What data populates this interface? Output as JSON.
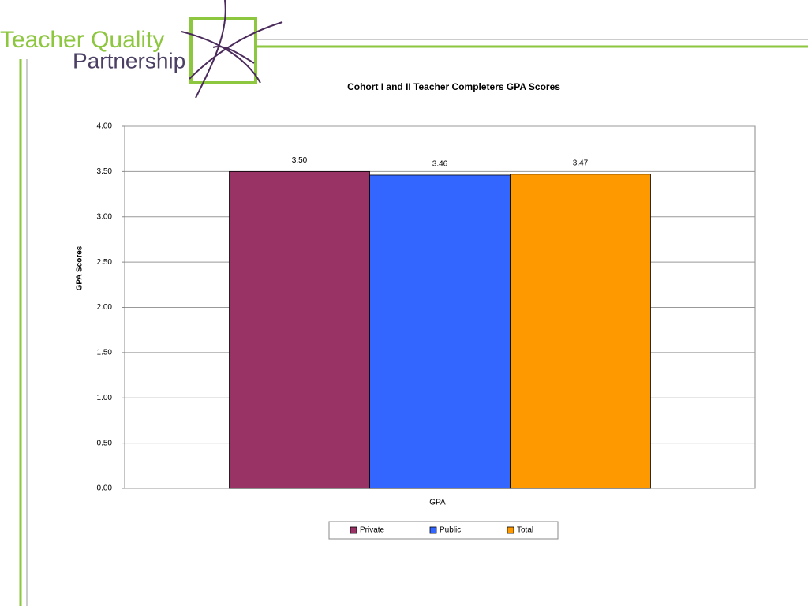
{
  "header": {
    "logo_line1": "Teacher Quality",
    "logo_line2": "Partnership"
  },
  "chart_data": {
    "type": "bar",
    "title": "Cohort I and II Teacher Completers GPA Scores",
    "y_label": "GPA Scores",
    "categories": [
      "GPA"
    ],
    "series": [
      {
        "name": "Private",
        "color": "#993366",
        "values": [
          3.5
        ],
        "value_labels": [
          "3.50"
        ]
      },
      {
        "name": "Public",
        "color": "#3366ff",
        "values": [
          3.46
        ],
        "value_labels": [
          "3.46"
        ]
      },
      {
        "name": "Total",
        "color": "#ff9900",
        "values": [
          3.47
        ],
        "value_labels": [
          "3.47"
        ]
      }
    ],
    "ylim": [
      0,
      4
    ],
    "yticks": [
      {
        "value": 0,
        "label": "0.00"
      },
      {
        "value": 0.5,
        "label": "0.50"
      },
      {
        "value": 1,
        "label": "1.00"
      },
      {
        "value": 1.5,
        "label": "1.50"
      },
      {
        "value": 2,
        "label": "2.00"
      },
      {
        "value": 2.5,
        "label": "2.50"
      },
      {
        "value": 3,
        "label": "3.00"
      },
      {
        "value": 3.5,
        "label": "3.50"
      },
      {
        "value": 4,
        "label": "4.00"
      }
    ],
    "grid": true,
    "legend": "bottom"
  }
}
